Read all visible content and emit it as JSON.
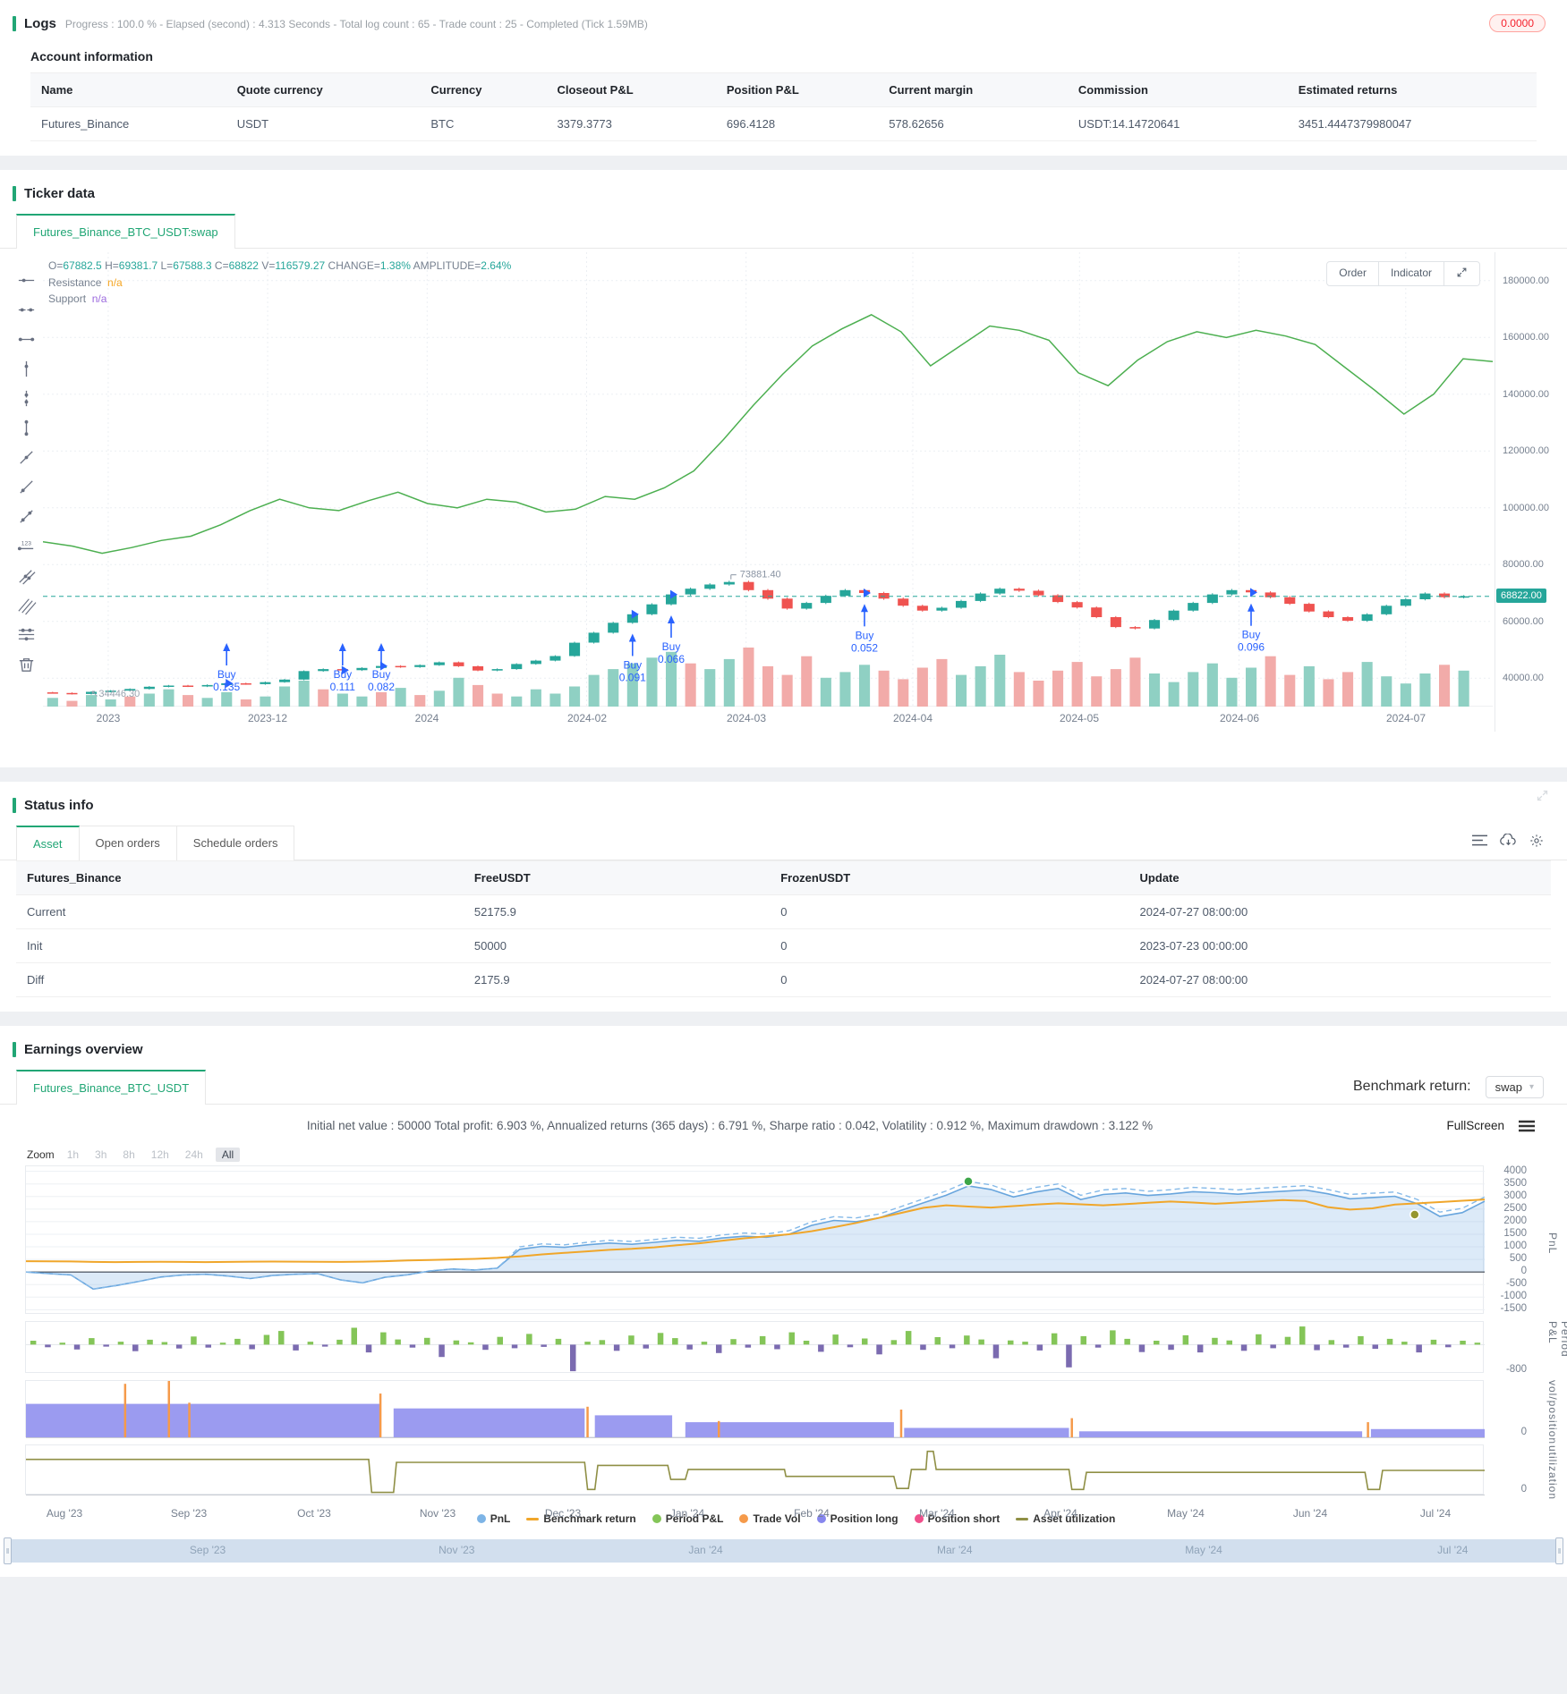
{
  "colors": {
    "accent": "#21a675",
    "up": "#26a69a",
    "down": "#ef5350",
    "buy_blue": "#2962ff",
    "badge_red": "#f5222d"
  },
  "logs": {
    "title": "Logs",
    "summary": "Progress : 100.0 % - Elapsed (second) : 4.313  Seconds - Total log count : 65 - Trade count : 25 - Completed (Tick 1.59MB)",
    "badge": "0.0000"
  },
  "account": {
    "title": "Account information",
    "headers": [
      "Name",
      "Quote currency",
      "Currency",
      "Closeout P&L",
      "Position P&L",
      "Current margin",
      "Commission",
      "Estimated returns"
    ],
    "row": [
      "Futures_Binance",
      "USDT",
      "BTC",
      "3379.3773",
      "696.4128",
      "578.62656",
      "USDT:14.14720641",
      "3451.4447379980047"
    ]
  },
  "ticker": {
    "title": "Ticker data",
    "tab": "Futures_Binance_BTC_USDT:swap",
    "order_label": "Order",
    "indicator_label": "Indicator",
    "ohlc": [
      {
        "k": "O=",
        "v": "67882.5"
      },
      {
        "k": "H=",
        "v": "69381.7"
      },
      {
        "k": "L=",
        "v": "67588.3"
      },
      {
        "k": "C=",
        "v": "68822"
      },
      {
        "k": "V=",
        "v": "116579.27"
      },
      {
        "k": "CHANGE=",
        "v": "1.38%"
      },
      {
        "k": "AMPLITUDE=",
        "v": "2.64%"
      }
    ],
    "resistance_label": "Resistance",
    "resistance_value": "n/a",
    "support_label": "Support",
    "support_value": "n/a",
    "price_tag": "68822.00",
    "tools": [
      "horizontal-ray",
      "horizontal-segment",
      "horizontal-line",
      "vertical-ray",
      "vertical-segment",
      "vertical-line",
      "ray",
      "segment",
      "line",
      "price-line",
      "parallel-lines",
      "price-channel",
      "horizontal-channel",
      "remove"
    ]
  },
  "status": {
    "title": "Status info",
    "tabs": [
      "Asset",
      "Open orders",
      "Schedule orders"
    ],
    "active_tab": "Asset",
    "icons": [
      "list-settings-icon",
      "cloud-download-icon",
      "gear-icon"
    ],
    "headers": [
      "Futures_Binance",
      "FreeUSDT",
      "FrozenUSDT",
      "Update"
    ],
    "rows": [
      {
        "name": "Current",
        "name_color": "teal",
        "free": "52175.9",
        "free_color": "",
        "frozen": "0",
        "update": "2024-07-27 08:00:00"
      },
      {
        "name": "Init",
        "name_color": "",
        "free": "50000",
        "free_color": "",
        "frozen": "0",
        "update": "2023-07-23 00:00:00"
      },
      {
        "name": "Diff",
        "name_color": "red",
        "free": "2175.9",
        "free_color": "red",
        "frozen": "0",
        "update": "2024-07-27 08:00:00"
      }
    ]
  },
  "earnings": {
    "title": "Earnings overview",
    "tab": "Futures_Binance_BTC_USDT",
    "benchmark_label": "Benchmark return:",
    "benchmark_value": "swap",
    "summary": "Initial net value : 50000 Total profit: 6.903 %, Annualized returns (365 days) : 6.791 %, Sharpe ratio : 0.042, Volatility : 0.912 %, Maximum drawdown : 3.122 %",
    "fullscreen_label": "FullScreen",
    "zoom_label": "Zoom",
    "zoom_buttons": [
      "1h",
      "3h",
      "8h",
      "12h",
      "24h",
      "All"
    ],
    "zoom_active": "All",
    "axis_titles": [
      "PnL",
      "Period P&L",
      "vol/position",
      "utilization"
    ],
    "legend": [
      {
        "label": "PnL",
        "color": "#7db4e6",
        "shape": "circle"
      },
      {
        "label": "Benchmark return",
        "color": "#f0a62a",
        "shape": "line"
      },
      {
        "label": "Period P&L",
        "color": "#84c558",
        "shape": "circle"
      },
      {
        "label": "Trade Vol",
        "color": "#f59a4a",
        "shape": "circle"
      },
      {
        "label": "Position long",
        "color": "#8787ee",
        "shape": "circle"
      },
      {
        "label": "Position short",
        "color": "#f0508c",
        "shape": "circle"
      },
      {
        "label": "Asset utilization",
        "color": "#8f8f45",
        "shape": "line"
      }
    ],
    "x_labels": [
      {
        "label": "Aug '23",
        "f": 0.027
      },
      {
        "label": "Sep '23",
        "f": 0.112
      },
      {
        "label": "Oct '23",
        "f": 0.198
      },
      {
        "label": "Nov '23",
        "f": 0.283
      },
      {
        "label": "Dec '23",
        "f": 0.369
      },
      {
        "label": "Jan '24",
        "f": 0.454
      },
      {
        "label": "Feb '24",
        "f": 0.539
      },
      {
        "label": "Mar '24",
        "f": 0.625
      },
      {
        "label": "Apr '24",
        "f": 0.71
      },
      {
        "label": "May '24",
        "f": 0.796
      },
      {
        "label": "Jun '24",
        "f": 0.881
      },
      {
        "label": "Jul '24",
        "f": 0.967
      }
    ],
    "nav_labels": [
      {
        "label": "Sep '23",
        "f": 0.13
      },
      {
        "label": "Nov '23",
        "f": 0.29
      },
      {
        "label": "Jan '24",
        "f": 0.45
      },
      {
        "label": "Mar '24",
        "f": 0.61
      },
      {
        "label": "May '24",
        "f": 0.77
      },
      {
        "label": "Jul '24",
        "f": 0.93
      }
    ]
  },
  "chart_data": [
    {
      "type": "candlestick",
      "title": "Futures_Binance_BTC_USDT:swap",
      "y_range": [
        30000,
        190000
      ],
      "y_ticks": [
        {
          "label": "180000.00",
          "v": 180000
        },
        {
          "label": "160000.00",
          "v": 160000
        },
        {
          "label": "140000.00",
          "v": 140000
        },
        {
          "label": "120000.00",
          "v": 120000
        },
        {
          "label": "100000.00",
          "v": 100000
        },
        {
          "label": "80000.00",
          "v": 80000
        },
        {
          "label": "60000.00",
          "v": 60000
        },
        {
          "label": "40000.00",
          "v": 40000
        }
      ],
      "x_ticks": [
        {
          "label": "2023",
          "f": 0.045
        },
        {
          "label": "2023-12",
          "f": 0.155
        },
        {
          "label": "2024",
          "f": 0.265
        },
        {
          "label": "2024-02",
          "f": 0.375
        },
        {
          "label": "2024-03",
          "f": 0.485
        },
        {
          "label": "2024-04",
          "f": 0.6
        },
        {
          "label": "2024-05",
          "f": 0.715
        },
        {
          "label": "2024-06",
          "f": 0.825
        },
        {
          "label": "2024-07",
          "f": 0.94
        }
      ],
      "last_price": 68822,
      "high_annotation": "73881.40",
      "low_annotation": "34446.30",
      "price_path": [
        35000,
        34800,
        34446,
        35200,
        35600,
        36200,
        37000,
        37400,
        37100,
        37600,
        38200,
        37900,
        38600,
        39500,
        42500,
        43200,
        42800,
        43600,
        44300,
        43900,
        44600,
        45600,
        44200,
        42700,
        43200,
        45000,
        46200,
        47800,
        52500,
        56000,
        59500,
        62500,
        66000,
        69500,
        71500,
        73000,
        73881,
        71000,
        68000,
        64500,
        66500,
        69000,
        71000,
        70000,
        68000,
        65500,
        63800,
        64800,
        67200,
        69800,
        71500,
        70800,
        69200,
        66800,
        64900,
        61500,
        58000,
        57500,
        60500,
        63800,
        66500,
        69500,
        71000,
        70200,
        68500,
        66200,
        63500,
        61500,
        60200,
        62500,
        65500,
        67800,
        69800,
        68500,
        68822
      ],
      "volumes": [
        6,
        -4,
        8,
        5,
        -7,
        9,
        12,
        -8,
        6,
        10,
        -5,
        7,
        14,
        18,
        -12,
        9,
        7,
        -10,
        13,
        -8,
        11,
        20,
        -15,
        -9,
        7,
        12,
        9,
        14,
        22,
        26,
        30,
        34,
        38,
        -30,
        26,
        33,
        -41,
        -28,
        -22,
        -35,
        20,
        24,
        29,
        -25,
        -19,
        -27,
        -33,
        22,
        28,
        36,
        -24,
        -18,
        -25,
        -31,
        -21,
        -26,
        -34,
        23,
        17,
        24,
        30,
        20,
        27,
        -35,
        -22,
        28,
        -19,
        -24,
        31,
        21,
        16,
        23,
        -29,
        25
      ],
      "equity_line": [
        88000,
        86500,
        84000,
        86000,
        88500,
        90000,
        94000,
        99000,
        103000,
        100000,
        99000,
        102500,
        105500,
        101500,
        100000,
        103000,
        102000,
        98500,
        99500,
        104000,
        103000,
        107000,
        113000,
        124000,
        136000,
        147000,
        157000,
        163000,
        168000,
        162000,
        150000,
        157000,
        164000,
        162500,
        159000,
        147500,
        143000,
        152000,
        158500,
        162000,
        160000,
        162500,
        160500,
        157500,
        149500,
        141500,
        133000,
        140000,
        152500,
        151500
      ],
      "buys": [
        {
          "label": "Buy",
          "qty": "0.135",
          "f": 0.119
        },
        {
          "label": "Buy",
          "qty": "0.111",
          "f": 0.205
        },
        {
          "label": "Buy",
          "qty": "0.082",
          "f": 0.239
        },
        {
          "label": "Buy",
          "qty": "0.091",
          "f": 0.415
        },
        {
          "label": "Buy",
          "qty": "0.066",
          "f": 0.437
        },
        {
          "label": "Buy",
          "qty": "0.052",
          "f": 0.58
        },
        {
          "label": "Buy",
          "qty": "0.096",
          "f": 0.851
        }
      ]
    },
    {
      "type": "multi-panel",
      "pnl": {
        "range": [
          -1700,
          4200
        ],
        "y_ticks": [
          4000,
          3500,
          3000,
          2500,
          2000,
          1500,
          1000,
          500,
          0,
          -500,
          -1000,
          -1500
        ],
        "line": [
          0,
          -60,
          -120,
          -680,
          -540,
          -380,
          -200,
          -120,
          -90,
          -160,
          -260,
          -140,
          -90,
          -70,
          -310,
          -430,
          -210,
          -110,
          40,
          120,
          80,
          150,
          900,
          1020,
          980,
          1080,
          1150,
          1100,
          1180,
          1260,
          1220,
          1350,
          1420,
          1380,
          1500,
          1850,
          2050,
          2000,
          2150,
          2450,
          2750,
          3050,
          3420,
          3280,
          2980,
          3180,
          3320,
          2880,
          3080,
          3140,
          3040,
          3100,
          3190,
          3150,
          3090,
          3160,
          3210,
          3260,
          3110,
          2910,
          2960,
          3010,
          2710,
          2210,
          2360,
          2810
        ],
        "dashed": [
          0,
          -60,
          -120,
          -680,
          -540,
          -380,
          -200,
          -120,
          -90,
          -160,
          -260,
          -140,
          -90,
          -70,
          -310,
          -430,
          -210,
          -110,
          40,
          120,
          80,
          150,
          1000,
          1120,
          1080,
          1180,
          1260,
          1210,
          1290,
          1380,
          1340,
          1470,
          1550,
          1510,
          1640,
          1990,
          2200,
          2150,
          2300,
          2600,
          2910,
          3220,
          3600,
          3460,
          3150,
          3360,
          3500,
          3050,
          3260,
          3320,
          3210,
          3270,
          3360,
          3320,
          3260,
          3330,
          3380,
          3430,
          3280,
          3080,
          3130,
          3180,
          2880,
          2380,
          2530,
          2980
        ],
        "benchmark": [
          430,
          425,
          420,
          400,
          395,
          400,
          405,
          400,
          395,
          400,
          410,
          415,
          410,
          405,
          400,
          410,
          430,
          460,
          480,
          500,
          520,
          560,
          620,
          700,
          760,
          820,
          880,
          920,
          980,
          1060,
          1140,
          1240,
          1340,
          1420,
          1500,
          1620,
          1780,
          1950,
          2150,
          2350,
          2550,
          2650,
          2600,
          2560,
          2620,
          2680,
          2730,
          2690,
          2650,
          2700,
          2750,
          2800,
          2760,
          2710,
          2760,
          2810,
          2860,
          2820,
          2580,
          2480,
          2530,
          2680,
          2730,
          2780,
          2830,
          2880
        ],
        "markers": [
          {
            "f": 0.646,
            "v": 3600,
            "color": "#3da649"
          },
          {
            "f": 0.952,
            "v": 2280,
            "color": "#96962f"
          }
        ]
      },
      "period": {
        "range": [
          -900,
          700
        ],
        "tick": "-800",
        "bars": [
          120,
          -80,
          60,
          -150,
          200,
          -60,
          90,
          -200,
          150,
          80,
          -120,
          250,
          -90,
          60,
          180,
          -140,
          300,
          420,
          -180,
          90,
          -60,
          150,
          520,
          -240,
          380,
          160,
          -90,
          210,
          -380,
          130,
          70,
          -160,
          240,
          -110,
          330,
          -70,
          180,
          -820,
          90,
          140,
          -190,
          280,
          -120,
          360,
          200,
          -150,
          90,
          -260,
          170,
          -90,
          260,
          -140,
          380,
          120,
          -220,
          310,
          -80,
          190,
          -300,
          140,
          420,
          -160,
          230,
          -110,
          280,
          160,
          -420,
          130,
          90,
          -180,
          350,
          -700,
          260,
          -90,
          440,
          180,
          -230,
          120,
          -160,
          290,
          -240,
          210,
          130,
          -190,
          320,
          -110,
          240,
          560,
          -170,
          140,
          -90,
          260,
          -130,
          180,
          90,
          -240,
          150,
          -80,
          120,
          60
        ]
      },
      "position": {
        "tick": "0",
        "steps": [
          [
            0,
            0.243,
            0.6
          ],
          [
            0.252,
            0.383,
            0.52
          ],
          [
            0.39,
            0.443,
            0.4
          ],
          [
            0.452,
            0.595,
            0.28
          ],
          [
            0.602,
            0.715,
            0.18
          ],
          [
            0.722,
            0.916,
            0.12
          ],
          [
            0.922,
            1.0,
            0.16
          ]
        ],
        "spikes": [
          [
            0.068,
            0.95
          ],
          [
            0.098,
            1.0
          ],
          [
            0.112,
            0.62
          ],
          [
            0.243,
            0.78
          ],
          [
            0.385,
            0.55
          ],
          [
            0.475,
            0.3
          ],
          [
            0.6,
            0.5
          ],
          [
            0.717,
            0.35
          ],
          [
            0.92,
            0.28
          ]
        ]
      },
      "utilization": {
        "tick": "0",
        "points": [
          [
            0,
            0.72
          ],
          [
            0.235,
            0.72
          ],
          [
            0.237,
            0.06
          ],
          [
            0.252,
            0.06
          ],
          [
            0.254,
            0.66
          ],
          [
            0.383,
            0.66
          ],
          [
            0.385,
            0.12
          ],
          [
            0.39,
            0.12
          ],
          [
            0.392,
            0.6
          ],
          [
            0.44,
            0.6
          ],
          [
            0.442,
            0.32
          ],
          [
            0.452,
            0.32
          ],
          [
            0.454,
            0.52
          ],
          [
            0.52,
            0.52
          ],
          [
            0.521,
            0.38
          ],
          [
            0.595,
            0.38
          ],
          [
            0.597,
            0.14
          ],
          [
            0.605,
            0.14
          ],
          [
            0.607,
            0.52
          ],
          [
            0.617,
            0.52
          ],
          [
            0.618,
            0.88
          ],
          [
            0.622,
            0.88
          ],
          [
            0.624,
            0.52
          ],
          [
            0.715,
            0.52
          ],
          [
            0.717,
            0.12
          ],
          [
            0.725,
            0.12
          ],
          [
            0.727,
            0.46
          ],
          [
            0.918,
            0.46
          ],
          [
            0.92,
            0.12
          ],
          [
            0.928,
            0.12
          ],
          [
            0.93,
            0.5
          ],
          [
            1,
            0.5
          ]
        ]
      }
    }
  ]
}
